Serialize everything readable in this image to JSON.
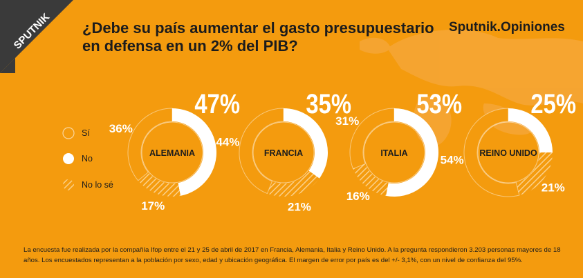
{
  "logo": {
    "text": "SPUTNIK"
  },
  "title": "¿Debe su país aumentar el gasto presupuestario en defensa en un 2% del PIB?",
  "brand": "Sputnik.Opiniones",
  "colors": {
    "background": "#f49b0e",
    "si": "#f49b0e",
    "no": "#ffffff",
    "nolose": "#f7b04a",
    "text": "#1c1c1c"
  },
  "legend": [
    {
      "label": "Sí",
      "style": "si"
    },
    {
      "label": "No",
      "style": "no"
    },
    {
      "label": "No lo sé",
      "style": "nolose"
    }
  ],
  "chart_data": {
    "type": "pie",
    "subtype": "donut",
    "categories": [
      "ALEMANIA",
      "FRANCIA",
      "ITALIA",
      "REINO UNIDO"
    ],
    "series": [
      {
        "name": "Sí",
        "values": [
          36,
          44,
          31,
          54
        ]
      },
      {
        "name": "No",
        "values": [
          47,
          35,
          53,
          25
        ]
      },
      {
        "name": "No lo sé",
        "values": [
          17,
          21,
          16,
          21
        ]
      }
    ],
    "labels": {
      "si": [
        "36%",
        "44%",
        "31%",
        "54%"
      ],
      "no": [
        "47%",
        "35%",
        "53%",
        "25%"
      ],
      "nolose": [
        "17%",
        "21%",
        "16%",
        "21%"
      ]
    }
  },
  "footer": "La encuesta fue realizada por la compañía Ifop entre el 21 y 25 de abril de 2017 en Francia, Alemania, Italia y Reino Unido. A la pregunta respondieron 3.203 personas mayores de 18 años. Los encuestados representan a la población por sexo, edad y ubicación geográfica. El margen de error por país es del +/- 3,1%, con un nivel de confianza del 95%."
}
